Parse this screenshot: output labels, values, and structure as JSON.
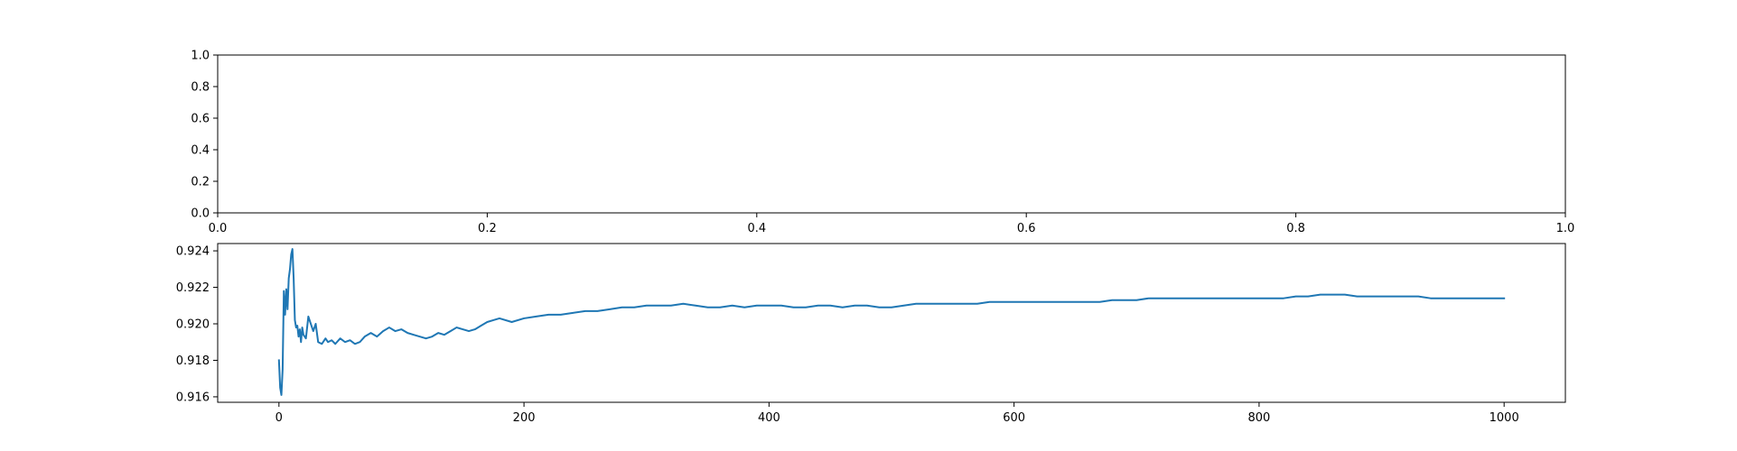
{
  "chart_data": [
    {
      "type": "line",
      "title": "",
      "xlabel": "",
      "ylabel": "",
      "xlim": [
        0.0,
        1.0
      ],
      "ylim": [
        0.0,
        1.0
      ],
      "xticks": [
        0.0,
        0.2,
        0.4,
        0.6,
        0.8,
        1.0
      ],
      "xtick_labels": [
        "0.0",
        "0.2",
        "0.4",
        "0.6",
        "0.8",
        "1.0"
      ],
      "yticks": [
        0.0,
        0.2,
        0.4,
        0.6,
        0.8,
        1.0
      ],
      "ytick_labels": [
        "0.0",
        "0.2",
        "0.4",
        "0.6",
        "0.8",
        "1.0"
      ],
      "grid": false,
      "series": []
    },
    {
      "type": "line",
      "title": "",
      "xlabel": "",
      "ylabel": "",
      "xlim": [
        -50,
        1050
      ],
      "ylim": [
        0.9157,
        0.9244
      ],
      "xticks": [
        0,
        200,
        400,
        600,
        800,
        1000
      ],
      "xtick_labels": [
        "0",
        "200",
        "400",
        "600",
        "800",
        "1000"
      ],
      "yticks": [
        0.916,
        0.918,
        0.92,
        0.922,
        0.924
      ],
      "ytick_labels": [
        "0.916",
        "0.918",
        "0.920",
        "0.922",
        "0.924"
      ],
      "grid": false,
      "colors": {
        "line": "#1f77b4"
      },
      "series": [
        {
          "x": [
            0,
            1,
            2,
            3,
            4,
            5,
            6,
            7,
            8,
            9,
            10,
            11,
            12,
            13,
            14,
            15,
            16,
            17,
            18,
            19,
            20,
            22,
            24,
            26,
            28,
            30,
            32,
            35,
            38,
            40,
            43,
            46,
            50,
            54,
            58,
            62,
            66,
            70,
            75,
            80,
            85,
            90,
            95,
            100,
            105,
            110,
            115,
            120,
            125,
            130,
            135,
            140,
            145,
            150,
            155,
            160,
            165,
            170,
            175,
            180,
            190,
            200,
            210,
            220,
            230,
            240,
            250,
            260,
            270,
            280,
            290,
            300,
            310,
            320,
            330,
            340,
            350,
            360,
            370,
            380,
            390,
            400,
            410,
            420,
            430,
            440,
            450,
            460,
            470,
            480,
            490,
            500,
            510,
            520,
            530,
            540,
            550,
            560,
            570,
            580,
            590,
            600,
            610,
            620,
            630,
            640,
            650,
            660,
            670,
            680,
            690,
            700,
            710,
            720,
            730,
            740,
            750,
            760,
            770,
            780,
            790,
            800,
            810,
            820,
            830,
            840,
            850,
            860,
            870,
            880,
            890,
            900,
            910,
            920,
            930,
            940,
            950,
            960,
            970,
            980,
            990,
            1000
          ],
          "y": [
            0.918,
            0.9165,
            0.9161,
            0.9175,
            0.9218,
            0.9205,
            0.9219,
            0.9208,
            0.9225,
            0.923,
            0.9238,
            0.9241,
            0.9225,
            0.9202,
            0.9198,
            0.9199,
            0.9193,
            0.9197,
            0.919,
            0.9198,
            0.9194,
            0.9192,
            0.9204,
            0.92,
            0.9196,
            0.92,
            0.919,
            0.9189,
            0.9192,
            0.919,
            0.9191,
            0.9189,
            0.9192,
            0.919,
            0.9191,
            0.9189,
            0.919,
            0.9193,
            0.9195,
            0.9193,
            0.9196,
            0.9198,
            0.9196,
            0.9197,
            0.9195,
            0.9194,
            0.9193,
            0.9192,
            0.9193,
            0.9195,
            0.9194,
            0.9196,
            0.9198,
            0.9197,
            0.9196,
            0.9197,
            0.9199,
            0.9201,
            0.9202,
            0.9203,
            0.9201,
            0.9203,
            0.9204,
            0.9205,
            0.9205,
            0.9206,
            0.9207,
            0.9207,
            0.9208,
            0.9209,
            0.9209,
            0.921,
            0.921,
            0.921,
            0.9211,
            0.921,
            0.9209,
            0.9209,
            0.921,
            0.9209,
            0.921,
            0.921,
            0.921,
            0.9209,
            0.9209,
            0.921,
            0.921,
            0.9209,
            0.921,
            0.921,
            0.9209,
            0.9209,
            0.921,
            0.9211,
            0.9211,
            0.9211,
            0.9211,
            0.9211,
            0.9211,
            0.9212,
            0.9212,
            0.9212,
            0.9212,
            0.9212,
            0.9212,
            0.9212,
            0.9212,
            0.9212,
            0.9212,
            0.9213,
            0.9213,
            0.9213,
            0.9214,
            0.9214,
            0.9214,
            0.9214,
            0.9214,
            0.9214,
            0.9214,
            0.9214,
            0.9214,
            0.9214,
            0.9214,
            0.9214,
            0.9215,
            0.9215,
            0.9216,
            0.9216,
            0.9216,
            0.9215,
            0.9215,
            0.9215,
            0.9215,
            0.9215,
            0.9215,
            0.9214,
            0.9214,
            0.9214,
            0.9214,
            0.9214,
            0.9214,
            0.9214
          ]
        }
      ]
    }
  ]
}
